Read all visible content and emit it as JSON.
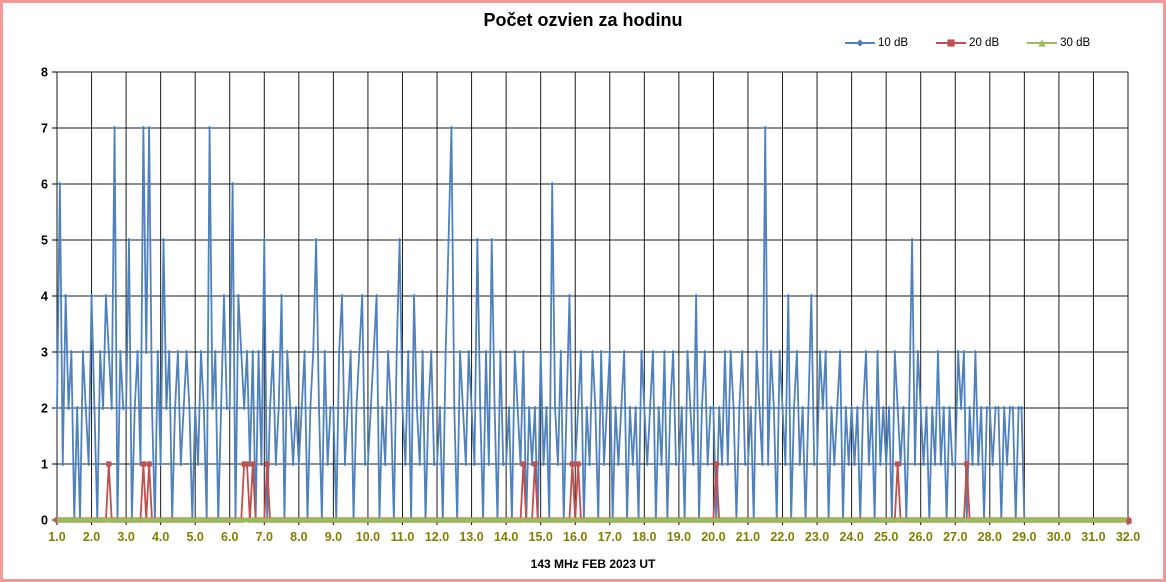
{
  "chart_data": {
    "type": "line",
    "title": "Počet ozvien za hodinu",
    "axis_title": "143 MHz FEB  2023  UT",
    "xlim": [
      1.0,
      32.0
    ],
    "ylim": [
      0,
      8
    ],
    "grid": true,
    "legend_position": "top-right",
    "x_tick_labels": [
      "1.0",
      "2.0",
      "3.0",
      "4.0",
      "5.0",
      "6.0",
      "7.0",
      "8.0",
      "9.0",
      "10.0",
      "11.0",
      "12.0",
      "13.0",
      "14.0",
      "15.0",
      "16.0",
      "17.0",
      "18.0",
      "19.0",
      "20.0",
      "21.0",
      "22.0",
      "23.0",
      "24.0",
      "25.0",
      "26.0",
      "27.0",
      "28.0",
      "29.0",
      "30.0",
      "31.0",
      "32.0"
    ],
    "y_tick_labels": [
      "0",
      "1",
      "2",
      "3",
      "4",
      "5",
      "6",
      "7",
      "8"
    ],
    "samples_per_day": 12,
    "series": [
      {
        "name": "10 dB",
        "color": "#4F81BD",
        "marker": "diamond",
        "x_start": 1.0,
        "x_step": 0.0833333,
        "values_by_day": [
          [
            2,
            6,
            1,
            4,
            2,
            3,
            0,
            2,
            0,
            3,
            2,
            1
          ],
          [
            4,
            2,
            0,
            3,
            2,
            4,
            3,
            2,
            7,
            0,
            3,
            2
          ],
          [
            2,
            5,
            0,
            2,
            3,
            1,
            7,
            3,
            7,
            2,
            0,
            3
          ],
          [
            1,
            5,
            2,
            3,
            0,
            2,
            3,
            1,
            2,
            3,
            2,
            0
          ],
          [
            2,
            1,
            3,
            2,
            0,
            7,
            2,
            3,
            0,
            2,
            4,
            2
          ],
          [
            2,
            6,
            0,
            4,
            3,
            2,
            3,
            1,
            3,
            0,
            3,
            1
          ],
          [
            5,
            0,
            2,
            3,
            1,
            2,
            4,
            0,
            3,
            2,
            1,
            2
          ],
          [
            1,
            2,
            3,
            0,
            2,
            3,
            5,
            2,
            0,
            3,
            1,
            2
          ],
          [
            2,
            0,
            3,
            4,
            1,
            2,
            3,
            0,
            2,
            3,
            4,
            1
          ],
          [
            1,
            2,
            3,
            4,
            0,
            2,
            1,
            3,
            2,
            0,
            3,
            5
          ],
          [
            2,
            1,
            3,
            0,
            4,
            2,
            1,
            3,
            0,
            2,
            3,
            1
          ],
          [
            1,
            2,
            0,
            3,
            5,
            7,
            2,
            0,
            3,
            2,
            1,
            3
          ],
          [
            2,
            1,
            5,
            2,
            0,
            3,
            1,
            5,
            2,
            0,
            3,
            1
          ],
          [
            1,
            2,
            0,
            3,
            2,
            1,
            3,
            0,
            2,
            1,
            2,
            0
          ],
          [
            3,
            1,
            2,
            0,
            6,
            2,
            1,
            3,
            0,
            2,
            4,
            1
          ],
          [
            1,
            2,
            3,
            0,
            2,
            1,
            3,
            2,
            0,
            3,
            1,
            2
          ],
          [
            3,
            0,
            2,
            1,
            2,
            3,
            0,
            2,
            1,
            2,
            0,
            3
          ],
          [
            2,
            1,
            2,
            3,
            0,
            2,
            1,
            3,
            0,
            2,
            3,
            1
          ],
          [
            1,
            2,
            0,
            3,
            2,
            1,
            4,
            0,
            2,
            3,
            1,
            2
          ],
          [
            2,
            0,
            2,
            1,
            3,
            1,
            3,
            2,
            0,
            2,
            3,
            1
          ],
          [
            1,
            2,
            0,
            3,
            2,
            1,
            7,
            1,
            3,
            2,
            0,
            3
          ],
          [
            2,
            1,
            4,
            0,
            2,
            3,
            1,
            2,
            0,
            2,
            4,
            1
          ],
          [
            1,
            3,
            2,
            3,
            0,
            2,
            1,
            2,
            3,
            0,
            2,
            1
          ],
          [
            2,
            1,
            2,
            0,
            2,
            3,
            1,
            2,
            0,
            3,
            1,
            2
          ],
          [
            1,
            2,
            0,
            3,
            2,
            1,
            2,
            0,
            2,
            5,
            1,
            3
          ],
          [
            2,
            1,
            2,
            0,
            2,
            1,
            3,
            1,
            2,
            0,
            2,
            1
          ],
          [
            1,
            3,
            2,
            3,
            0,
            2,
            1,
            3,
            1,
            2,
            0,
            2
          ],
          [
            2,
            1,
            2,
            2,
            0,
            2,
            1,
            2,
            2,
            0,
            2,
            2
          ],
          [
            0
          ]
        ]
      },
      {
        "name": "20 dB",
        "color": "#C0504D",
        "marker": "square",
        "x_start": 1.0,
        "x_end": 32.0,
        "x_step": 0.0833333,
        "fill_value": 0,
        "spikes": [
          [
            2.5,
            1
          ],
          [
            3.5,
            1
          ],
          [
            3.6667,
            1
          ],
          [
            6.4167,
            1
          ],
          [
            6.5,
            1
          ],
          [
            6.6667,
            1
          ],
          [
            7.0833,
            1
          ],
          [
            14.5,
            1
          ],
          [
            14.8333,
            1
          ],
          [
            15.9167,
            1
          ],
          [
            16.0833,
            1
          ],
          [
            20.0833,
            1
          ],
          [
            25.3333,
            1
          ],
          [
            27.3333,
            1
          ]
        ]
      },
      {
        "name": "30 dB",
        "color": "#9BBB59",
        "marker": "triangle",
        "x_start": 1.0,
        "x_end": 32.0,
        "constant_value": 0
      }
    ],
    "colors": {
      "grid": "#1a1a1a",
      "axis": "#000000",
      "x_tick_label": "#808000",
      "y_tick_label": "#000000",
      "chart_border": "#F49898",
      "background": "#ffffff"
    }
  }
}
